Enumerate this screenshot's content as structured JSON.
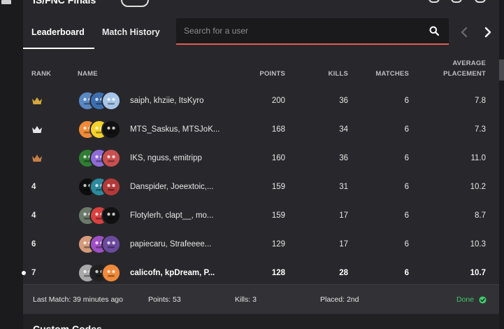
{
  "header": {
    "title": "IS/FNC Finals"
  },
  "tabs": [
    {
      "label": "Leaderboard",
      "active": true
    },
    {
      "label": "Match History",
      "active": false
    }
  ],
  "search": {
    "placeholder": "Search for a user"
  },
  "columns": {
    "rank": "RANK",
    "name": "NAME",
    "points": "POINTS",
    "kills": "KILLS",
    "matches": "MATCHES",
    "average_line1": "AVERAGE",
    "average_line2": "PLACEMENT"
  },
  "colors": {
    "gold_crown": "#d6a73c",
    "silver_crown": "#e6e6e6",
    "bronze_crown": "#c77f4a",
    "accent_underline": "#e85a4f",
    "done_green": "#3ec96a"
  },
  "rows": [
    {
      "rank": "",
      "crown": "gold",
      "names": "saiph, khziie, ItsKyro",
      "points": "200",
      "kills": "36",
      "matches": "6",
      "avg": "7.8",
      "avatars": [
        "#5a88c4",
        "#3d6fb0",
        "#a7c5e8"
      ]
    },
    {
      "rank": "",
      "crown": "silver",
      "names": "MTS_Saskus, MTSJoK...",
      "points": "168",
      "kills": "34",
      "matches": "6",
      "avg": "7.3",
      "avatars": [
        "#f08a3a",
        "#f3d22a",
        "#111111"
      ]
    },
    {
      "rank": "",
      "crown": "bronze",
      "names": "IKS, nguss, emitripp",
      "points": "160",
      "kills": "36",
      "matches": "6",
      "avg": "11.0",
      "avatars": [
        "#2e7d32",
        "#8e6bd6",
        "#c95050"
      ]
    },
    {
      "rank": "4",
      "crown": "",
      "names": "Danspider, Joeextoic,...",
      "points": "159",
      "kills": "31",
      "matches": "6",
      "avg": "10.2",
      "avatars": [
        "#0d0d0d",
        "#2c8a9e",
        "#b33a3a"
      ]
    },
    {
      "rank": "4",
      "crown": "",
      "names": "Flotylerh, clapt__, mo...",
      "points": "159",
      "kills": "17",
      "matches": "6",
      "avg": "8.7",
      "avatars": [
        "#6a7a6a",
        "#d94040",
        "#111111"
      ]
    },
    {
      "rank": "6",
      "crown": "",
      "names": "papiecaru, Strafeeee...",
      "points": "129",
      "kills": "17",
      "matches": "6",
      "avg": "10.3",
      "avatars": [
        "#d59a7a",
        "#9f4fc4",
        "#6b4a9e"
      ]
    },
    {
      "rank": "7",
      "crown": "",
      "names": "calicofn, kpDream, P...",
      "points": "128",
      "kills": "28",
      "matches": "6",
      "avg": "10.7",
      "avatars": [
        "#a8a8a8",
        "#202020",
        "#f08a3a"
      ],
      "highlight": true
    }
  ],
  "footer": {
    "last_match": "Last Match: 39 minutes ago",
    "points": "Points: 53",
    "kills": "Kills: 3",
    "placed": "Placed: 2nd",
    "status": "Done"
  },
  "below": {
    "heading": "Custom Codes"
  }
}
